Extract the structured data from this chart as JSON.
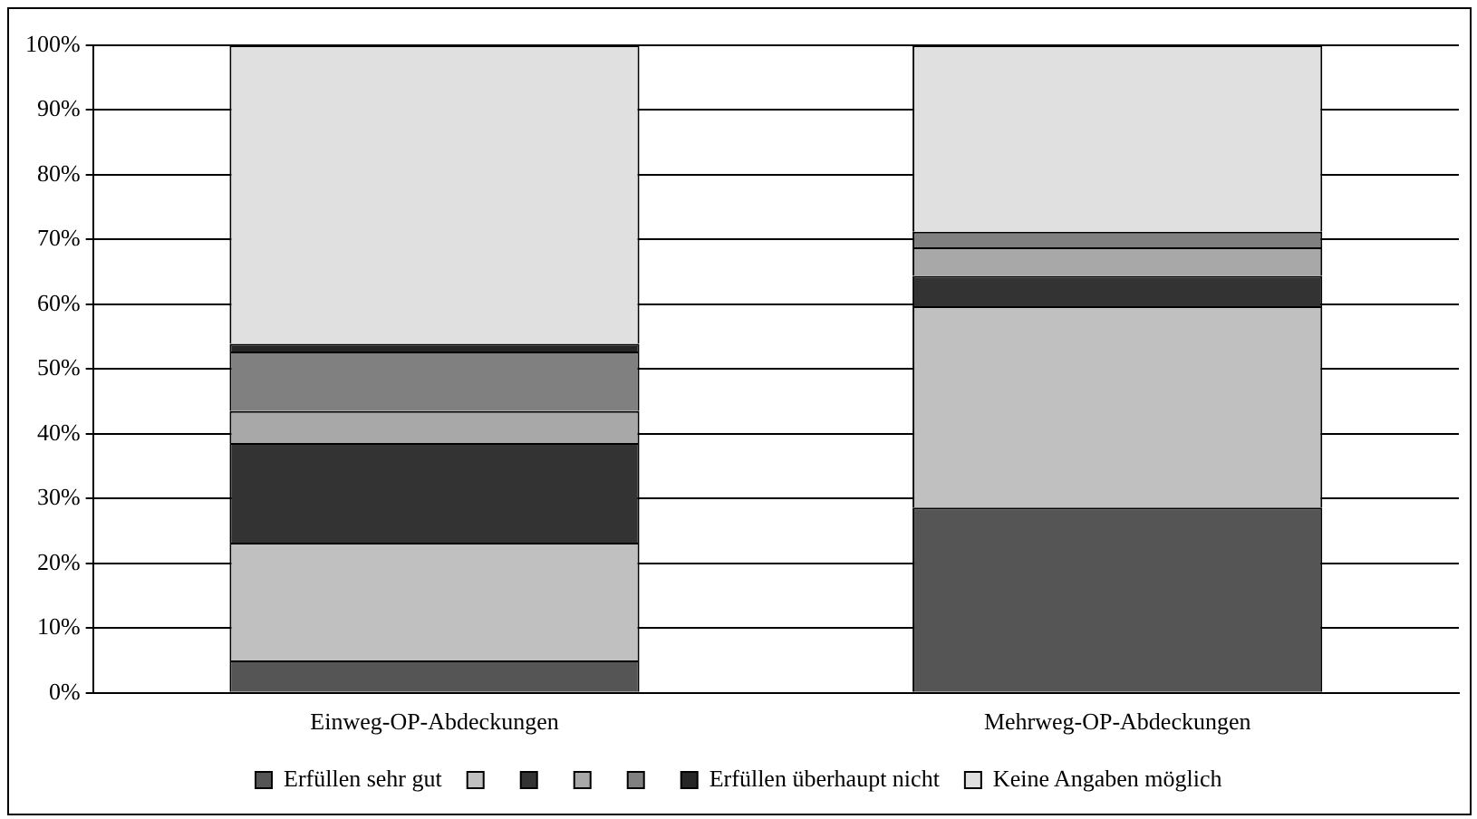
{
  "chart_data": {
    "type": "bar",
    "stacked": true,
    "categories": [
      "Einweg-OP-Abdeckungen",
      "Mehrweg-OP-Abdeckungen"
    ],
    "series": [
      {
        "name": "Erfüllen sehr gut",
        "color": "#555555",
        "values": [
          5,
          28.6
        ]
      },
      {
        "color": "#c0c0c0",
        "values": [
          18.2,
          31.1
        ]
      },
      {
        "color": "#333333",
        "values": [
          15.4,
          4.7
        ]
      },
      {
        "color": "#a8a8a8",
        "values": [
          4.9,
          4.4
        ]
      },
      {
        "color": "#808080",
        "values": [
          9.2,
          2.4
        ]
      },
      {
        "name": "Erfüllen überhaupt nicht",
        "color": "#262626",
        "values": [
          1.2,
          0
        ]
      },
      {
        "name": "Keine Angaben möglich",
        "color": "#e0e0e0",
        "values": [
          46.1,
          28.8
        ]
      }
    ],
    "ylim": [
      0,
      100
    ],
    "yticks": [
      {
        "value": 0,
        "label": "0%"
      },
      {
        "value": 10,
        "label": "10%"
      },
      {
        "value": 20,
        "label": "20%"
      },
      {
        "value": 30,
        "label": "30%"
      },
      {
        "value": 40,
        "label": "40%"
      },
      {
        "value": 50,
        "label": "50%"
      },
      {
        "value": 60,
        "label": "60%"
      },
      {
        "value": 70,
        "label": "70%"
      },
      {
        "value": 80,
        "label": "80%"
      },
      {
        "value": 90,
        "label": "90%"
      },
      {
        "value": 100,
        "label": "100%"
      }
    ],
    "grid": "y",
    "legend": "bottom"
  }
}
